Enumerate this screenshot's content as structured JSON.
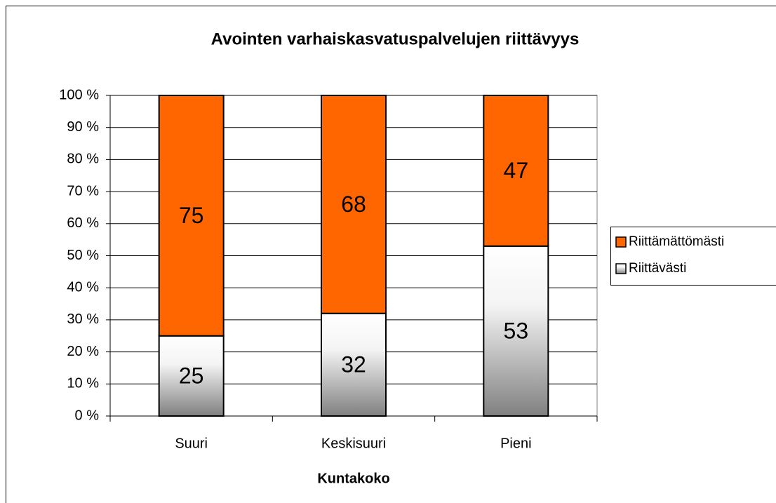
{
  "chart_data": {
    "type": "stacked_bar_100",
    "title": "Avointen varhaiskasvatuspalvelujen riittävyys",
    "x_label": "Kuntakoko",
    "categories": [
      "Suuri",
      "Keskisuuri",
      "Pieni"
    ],
    "series": [
      {
        "name": "Riittävästi",
        "color": "#808080",
        "gradient": true,
        "values": [
          25,
          32,
          53
        ]
      },
      {
        "name": "Riittämättömästi",
        "color": "#ff6600",
        "values": [
          75,
          68,
          47
        ]
      }
    ],
    "ylim": [
      0,
      100
    ],
    "yticks": [
      {
        "value": 0,
        "label": "0 %"
      },
      {
        "value": 10,
        "label": "10 %"
      },
      {
        "value": 20,
        "label": "20 %"
      },
      {
        "value": 30,
        "label": "30 %"
      },
      {
        "value": 40,
        "label": "40 %"
      },
      {
        "value": 50,
        "label": "50 %"
      },
      {
        "value": 60,
        "label": "60 %"
      },
      {
        "value": 70,
        "label": "70 %"
      },
      {
        "value": 80,
        "label": "80 %"
      },
      {
        "value": 90,
        "label": "90 %"
      },
      {
        "value": 100,
        "label": "100 %"
      }
    ],
    "grid": true,
    "legend": "right"
  }
}
